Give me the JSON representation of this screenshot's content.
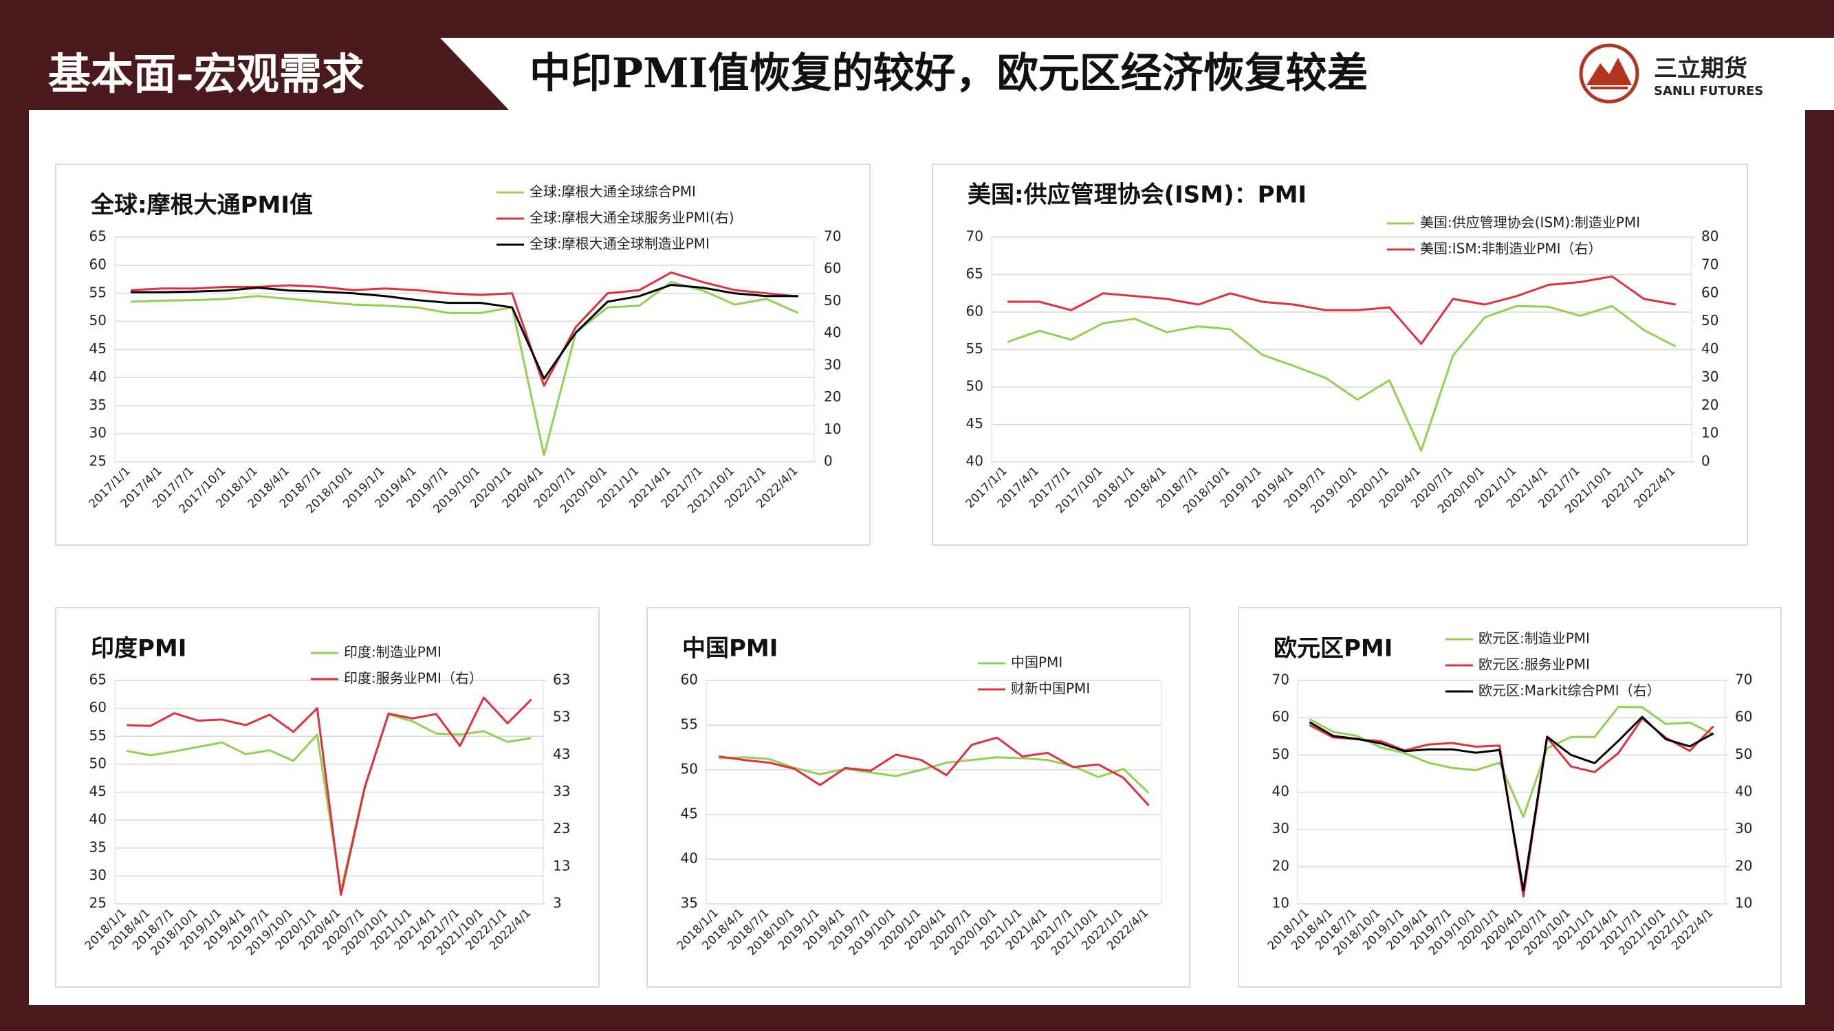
{
  "header": {
    "section": "基本面-宏观需求",
    "title": "中印PMI值恢复的较好，欧元区经济恢复较差",
    "brand": "三立期货",
    "brand_en": "SANLI FUTURES"
  },
  "chart_data": [
    {
      "type": "line",
      "title": "全球:摩根大通PMI值",
      "categories": [
        "2017/1/1",
        "2017/4/1",
        "2017/7/1",
        "2017/10/1",
        "2018/1/1",
        "2018/4/1",
        "2018/7/1",
        "2018/10/1",
        "2019/1/1",
        "2019/4/1",
        "2019/7/1",
        "2019/10/1",
        "2020/1/1",
        "2020/4/1",
        "2020/7/1",
        "2020/10/1",
        "2021/1/1",
        "2021/4/1",
        "2021/7/1",
        "2021/10/1",
        "2022/1/1",
        "2022/4/1"
      ],
      "ylim": [
        25,
        65
      ],
      "yticks": [
        25,
        30,
        35,
        40,
        45,
        50,
        55,
        60,
        65
      ],
      "y2lim": [
        0,
        70
      ],
      "y2ticks": [
        0,
        10,
        20,
        30,
        40,
        50,
        60,
        70
      ],
      "grid": true,
      "series": [
        {
          "name": "全球:摩根大通全球综合PMI",
          "color": "#92d050",
          "values": [
            53.5,
            53.7,
            53.8,
            54,
            54.5,
            54,
            53.5,
            53,
            52.8,
            52.5,
            51.5,
            51.5,
            52.5,
            26.2,
            48,
            52.5,
            52.8,
            57,
            55.5,
            53,
            54,
            51.5
          ]
        },
        {
          "name": "全球:摩根大通全球服务业PMI(右)",
          "color": "#e03040",
          "axis": "y2",
          "values": [
            53.5,
            54,
            54,
            54.5,
            54.5,
            55,
            54.5,
            53.5,
            54,
            53.5,
            52.5,
            52,
            52.5,
            23.7,
            42,
            52.5,
            53.5,
            59,
            56,
            53.5,
            52.5,
            51.5
          ]
        },
        {
          "name": "全球:摩根大通全球制造业PMI",
          "color": "#000000",
          "values": [
            55.2,
            55.2,
            55.3,
            55.5,
            56,
            55.5,
            55.3,
            55,
            54.5,
            53.8,
            53.3,
            53.3,
            52.5,
            39.8,
            48,
            53.5,
            54.5,
            56.5,
            56,
            55,
            54.5,
            54.5
          ]
        }
      ]
    },
    {
      "type": "line",
      "title": "美国:供应管理协会(ISM)：PMI",
      "categories": [
        "2017/1/1",
        "2017/4/1",
        "2017/7/1",
        "2017/10/1",
        "2018/1/1",
        "2018/4/1",
        "2018/7/1",
        "2018/10/1",
        "2019/1/1",
        "2019/4/1",
        "2019/7/1",
        "2019/10/1",
        "2020/1/1",
        "2020/4/1",
        "2020/7/1",
        "2020/10/1",
        "2021/1/1",
        "2021/4/1",
        "2021/7/1",
        "2021/10/1",
        "2022/1/1",
        "2022/4/1"
      ],
      "ylim": [
        40,
        70
      ],
      "yticks": [
        40,
        45,
        50,
        55,
        60,
        65,
        70
      ],
      "y2lim": [
        0,
        80
      ],
      "y2ticks": [
        0,
        10,
        20,
        30,
        40,
        50,
        60,
        70,
        80
      ],
      "grid": true,
      "series": [
        {
          "name": "美国:供应管理协会(ISM):制造业PMI",
          "color": "#92d050",
          "values": [
            56,
            57.5,
            56.3,
            58.5,
            59.1,
            57.3,
            58.1,
            57.7,
            54.3,
            52.8,
            51.2,
            48.3,
            50.9,
            41.5,
            54.2,
            59.3,
            60.8,
            60.7,
            59.5,
            60.8,
            57.6,
            55.4
          ]
        },
        {
          "name": "美国:ISM:非制造业PMI（右）",
          "color": "#e03040",
          "axis": "y2",
          "values": [
            57,
            57,
            54,
            60,
            59,
            58,
            56,
            60,
            57,
            56,
            54,
            54,
            55,
            42,
            58,
            56,
            59,
            63,
            64,
            66,
            58,
            56
          ]
        }
      ]
    },
    {
      "type": "line",
      "title": "印度PMI",
      "categories": [
        "2018/1/1",
        "2018/4/1",
        "2018/7/1",
        "2018/10/1",
        "2019/1/1",
        "2019/4/1",
        "2019/7/1",
        "2019/10/1",
        "2020/1/1",
        "2020/4/1",
        "2020/7/1",
        "2020/10/1",
        "2021/1/1",
        "2021/4/1",
        "2021/7/1",
        "2021/10/1",
        "2022/1/1",
        "2022/4/1"
      ],
      "ylim": [
        25,
        65
      ],
      "yticks": [
        25,
        30,
        35,
        40,
        45,
        50,
        55,
        60,
        65
      ],
      "y2lim": [
        3,
        63
      ],
      "y2ticks": [
        3,
        13,
        23,
        33,
        43,
        53,
        63
      ],
      "grid": true,
      "series": [
        {
          "name": "印度:制造业PMI",
          "color": "#92d050",
          "values": [
            52.4,
            51.6,
            52.3,
            53.1,
            53.9,
            51.8,
            52.5,
            50.6,
            55.3,
            27.4,
            46,
            58.9,
            57.7,
            55.5,
            55.3,
            55.9,
            54,
            54.7
          ]
        },
        {
          "name": "印度:服务业PMI（右）",
          "color": "#e03040",
          "axis": "y2",
          "values": [
            51,
            50.8,
            54.2,
            52.2,
            52.5,
            51,
            53.8,
            49.2,
            55.5,
            5.4,
            34.2,
            54.1,
            52.8,
            54,
            45.4,
            58.4,
            51.5,
            57.9
          ]
        }
      ]
    },
    {
      "type": "line",
      "title": "中国PMI",
      "categories": [
        "2018/1/1",
        "2018/4/1",
        "2018/7/1",
        "2018/10/1",
        "2019/1/1",
        "2019/4/1",
        "2019/7/1",
        "2019/10/1",
        "2020/1/1",
        "2020/4/1",
        "2020/7/1",
        "2020/10/1",
        "2021/1/1",
        "2021/4/1",
        "2021/7/1",
        "2021/10/1",
        "2022/1/1",
        "2022/4/1"
      ],
      "ylim": [
        35,
        60
      ],
      "yticks": [
        35,
        40,
        45,
        50,
        55,
        60
      ],
      "grid": true,
      "series": [
        {
          "name": "中国PMI",
          "color": "#92d050",
          "values": [
            51.3,
            51.4,
            51.2,
            50.2,
            49.5,
            50.1,
            49.7,
            49.3,
            50,
            50.8,
            51.1,
            51.4,
            51.3,
            51.1,
            50.4,
            49.2,
            50.1,
            47.4
          ]
        },
        {
          "name": "财新中国PMI",
          "color": "#e03040",
          "values": [
            51.5,
            51.1,
            50.8,
            50.1,
            48.3,
            50.2,
            49.9,
            51.7,
            51.1,
            49.4,
            52.8,
            53.6,
            51.5,
            51.9,
            50.3,
            50.6,
            49.1,
            46
          ]
        }
      ]
    },
    {
      "type": "line",
      "title": "欧元区PMI",
      "categories": [
        "2018/1/1",
        "2018/4/1",
        "2018/7/1",
        "2018/10/1",
        "2019/1/1",
        "2019/4/1",
        "2019/7/1",
        "2019/10/1",
        "2020/1/1",
        "2020/4/1",
        "2020/7/1",
        "2020/10/1",
        "2021/1/1",
        "2021/4/1",
        "2021/7/1",
        "2021/10/1",
        "2022/1/1",
        "2022/4/1"
      ],
      "ylim": [
        10,
        70
      ],
      "yticks": [
        10,
        20,
        30,
        40,
        50,
        60,
        70
      ],
      "y2lim": [
        10,
        70
      ],
      "y2ticks": [
        10,
        20,
        30,
        40,
        50,
        60,
        70
      ],
      "grid": true,
      "series": [
        {
          "name": "欧元区:制造业PMI",
          "color": "#92d050",
          "values": [
            59.6,
            56.2,
            55.1,
            52,
            50.5,
            47.9,
            46.5,
            45.9,
            47.9,
            33.4,
            51.8,
            54.8,
            54.8,
            62.9,
            62.8,
            58.3,
            58.7,
            55.5
          ]
        },
        {
          "name": "欧元区:服务业PMI",
          "color": "#e03040",
          "values": [
            58,
            54.7,
            54.2,
            53.7,
            51.2,
            52.8,
            53.2,
            52.2,
            52.5,
            12,
            54.7,
            46.9,
            45.4,
            50.5,
            59.8,
            54.6,
            51.1,
            57.7
          ]
        },
        {
          "name": "欧元区:Markit综合PMI（右）",
          "color": "#000000",
          "axis": "y2",
          "values": [
            58.8,
            55.1,
            54.3,
            53.1,
            51,
            51.5,
            51.5,
            50.6,
            51.3,
            13.6,
            54.9,
            50,
            47.8,
            53.8,
            60.2,
            54.2,
            52.3,
            55.8
          ]
        }
      ]
    }
  ]
}
